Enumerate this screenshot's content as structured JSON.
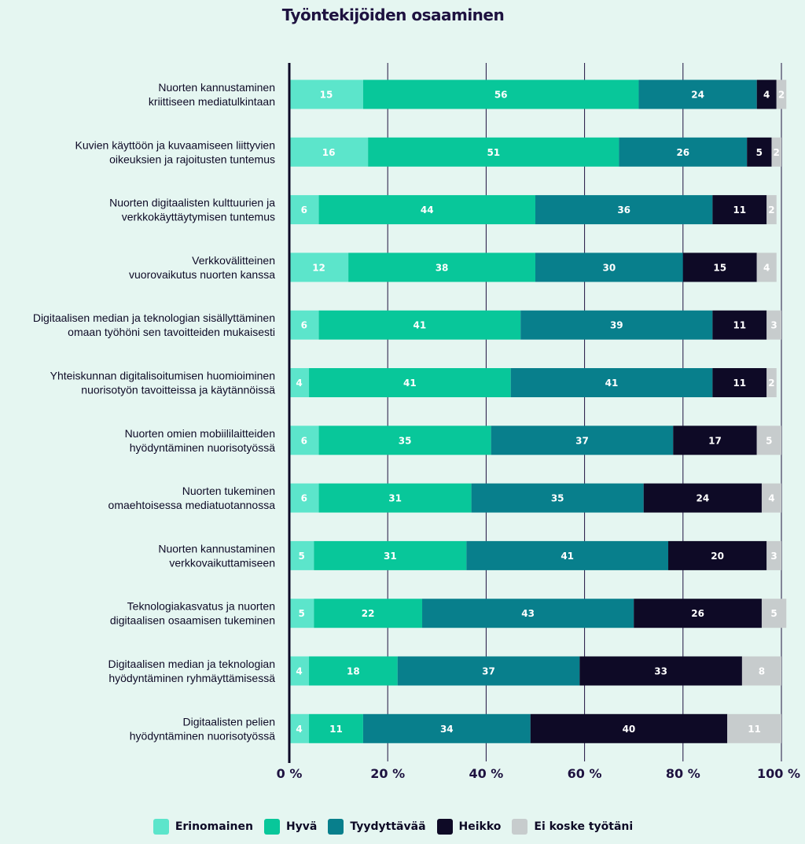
{
  "chart_data": {
    "type": "bar",
    "orientation": "horizontal",
    "stacked": true,
    "title": "Työntekijöiden osaaminen",
    "categories": [
      [
        "Nuorten kannustaminen",
        "kriittiseen mediatulkintaan"
      ],
      [
        "Kuvien käyttöön ja kuvaamiseen liittyvien",
        "oikeuksien ja rajoitusten tuntemus"
      ],
      [
        "Nuorten digitaalisten kulttuurien ja",
        "verkkokäyttäytymisen tuntemus"
      ],
      [
        "Verkkovälitteinen",
        "vuorovaikutus nuorten kanssa"
      ],
      [
        "Digitaalisen median ja teknologian sisällyttäminen",
        "omaan työhöni sen tavoitteiden mukaisesti"
      ],
      [
        "Yhteiskunnan digitalisoitumisen huomioiminen",
        "nuorisotyön tavoitteissa ja käytännöissä"
      ],
      [
        "Nuorten omien mobiililaitteiden",
        "hyödyntäminen nuorisotyössä"
      ],
      [
        "Nuorten tukeminen",
        "omaehtoisessa mediatuotannossa"
      ],
      [
        "Nuorten kannustaminen",
        "verkkovaikuttamiseen"
      ],
      [
        "Teknologiakasvatus ja nuorten",
        "digitaalisen osaamisen tukeminen"
      ],
      [
        "Digitaalisen median ja teknologian",
        "hyödyntäminen ryhmäyttämisessä"
      ],
      [
        "Digitaalisten pelien",
        "hyödyntäminen nuorisotyössä"
      ]
    ],
    "series": [
      {
        "name": "Erinomainen",
        "color": "#5ce5cb",
        "values": [
          15,
          16,
          6,
          12,
          6,
          4,
          6,
          6,
          5,
          5,
          4,
          4
        ]
      },
      {
        "name": "Hyvä",
        "color": "#08c79a",
        "values": [
          56,
          51,
          44,
          38,
          41,
          41,
          35,
          31,
          31,
          22,
          18,
          11
        ]
      },
      {
        "name": "Tyydyttävää",
        "color": "#087f8c",
        "values": [
          24,
          26,
          36,
          30,
          39,
          41,
          37,
          35,
          41,
          43,
          37,
          34
        ]
      },
      {
        "name": "Heikko",
        "color": "#0e0a26",
        "values": [
          4,
          5,
          11,
          15,
          11,
          11,
          17,
          24,
          20,
          26,
          33,
          40
        ]
      },
      {
        "name": "Ei koske työtäni",
        "color": "#c7cccd",
        "values": [
          2,
          2,
          2,
          4,
          3,
          2,
          5,
          4,
          3,
          5,
          8,
          11
        ]
      }
    ],
    "xlim": [
      0,
      100
    ],
    "xticks": [
      "0 %",
      "20 %",
      "40 %",
      "60 %",
      "80 %",
      "100 %"
    ],
    "grid": true,
    "legend_position": "bottom"
  }
}
